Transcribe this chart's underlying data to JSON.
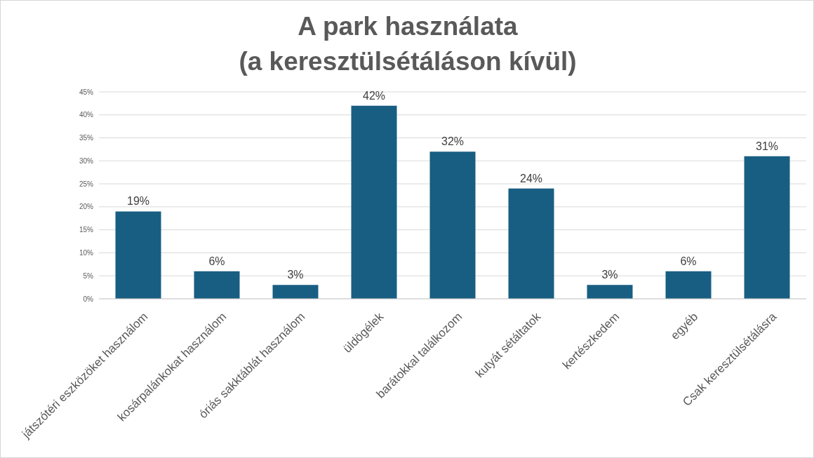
{
  "chart_data": {
    "type": "bar",
    "title": "A park használata\n(a keresztülsétáláson kívül)",
    "categories": [
      "játszótéri eszközöket használom",
      "kosárpalánkokat használom",
      "óriás sakktáblát használom",
      "üldögélek",
      "barátokkal találkozom",
      "kutyát sétáltatok",
      "kertészkedem",
      "egyéb",
      "Csak keresztülsétálásra"
    ],
    "values": [
      19,
      6,
      3,
      42,
      32,
      24,
      3,
      6,
      31
    ],
    "value_labels": [
      "19%",
      "6%",
      "3%",
      "42%",
      "32%",
      "24%",
      "3%",
      "6%",
      "31%"
    ],
    "color": "#185e82",
    "ylim": [
      0,
      45
    ],
    "yticks": [
      {
        "value": 0,
        "label": "0%"
      },
      {
        "value": 5,
        "label": "5%"
      },
      {
        "value": 10,
        "label": "10%"
      },
      {
        "value": 15,
        "label": "15%"
      },
      {
        "value": 20,
        "label": "20%"
      },
      {
        "value": 25,
        "label": "25%"
      },
      {
        "value": 30,
        "label": "30%"
      },
      {
        "value": 35,
        "label": "35%"
      },
      {
        "value": 40,
        "label": "40%"
      },
      {
        "value": 45,
        "label": "45%"
      }
    ],
    "grid": "y"
  }
}
